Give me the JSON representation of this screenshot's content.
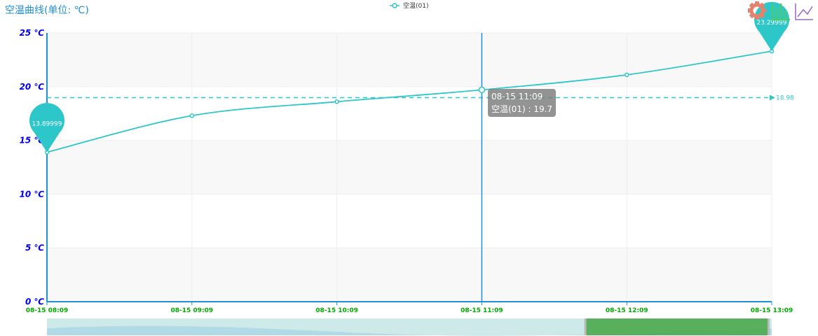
{
  "chart_data": {
    "type": "line",
    "title": "空温曲线(单位: ℃)",
    "legend": {
      "entries": [
        "空温(01)"
      ],
      "placement": "top-center"
    },
    "categories": [
      "08-15 08:09",
      "08-15 09:09",
      "08-15 10:09",
      "08-15 11:09",
      "08-15 12:09",
      "08-15 13:09"
    ],
    "series": [
      {
        "name": "空温(01)",
        "values": [
          13.89999,
          17.3,
          18.6,
          19.7,
          21.1,
          23.29999
        ],
        "color": "#2ec7c9",
        "smooth": true
      }
    ],
    "mark_points": [
      {
        "type": "min",
        "label": "13.89999",
        "index": 0
      },
      {
        "type": "max",
        "label": "23.29999",
        "index": 5
      }
    ],
    "mark_line": {
      "type": "average",
      "value": 18.98,
      "label": "18.98"
    },
    "y_ticks": [
      "0 ℃",
      "5 ℃",
      "10 ℃",
      "15 ℃",
      "20 ℃",
      "25 ℃"
    ],
    "ylim": [
      0,
      25
    ],
    "y_tick_color": "#0000ff",
    "x_tick_color": "#00aa00",
    "axis_color": "#1e90d6",
    "grid": true,
    "tooltip": {
      "title": "08-15 11:09",
      "text": "空温(01) : 19.7",
      "index": 3
    },
    "toolbox": {
      "icons": [
        "gear-icon",
        "bar-chart-icon",
        "line-chart-icon"
      ]
    },
    "data_zoom": {
      "start_percent": 75,
      "end_percent": 100
    }
  }
}
